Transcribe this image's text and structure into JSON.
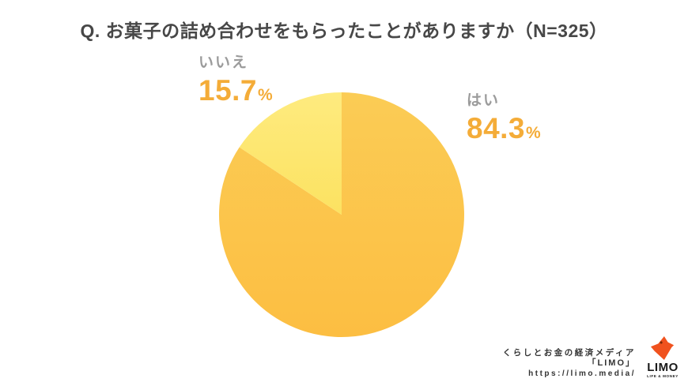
{
  "title": "Q. お菓子の詰め合わせをもらったことがありますか（N=325）",
  "chart_data": {
    "type": "pie",
    "title": "Q. お菓子の詰め合わせをもらったことがありますか",
    "sample_size": "N=325",
    "start_angle_deg": 0,
    "direction": "clockwise",
    "legend_position": "callout-labels",
    "slices": [
      {
        "label": "はい",
        "value": 84.3,
        "unit": "%",
        "color": "#FCC54A",
        "color_top": "#FBCC55",
        "color_bottom": "#FCBE42"
      },
      {
        "label": "いいえ",
        "value": 15.7,
        "unit": "%",
        "color": "#FDE76F",
        "color_top": "#FEEB7F",
        "color_bottom": "#FCE261"
      }
    ]
  },
  "callouts": {
    "yes": {
      "label": "はい",
      "value": "84.3",
      "unit": "%"
    },
    "no": {
      "label": "いいえ",
      "value": "15.7",
      "unit": "%"
    }
  },
  "colors": {
    "title_text": "#474747",
    "category_text": "#9B9B9B",
    "percent_text": "#F4AC38",
    "credit_text": "#333333",
    "logo_orange": "#F0521E",
    "background": "#FFFFFF"
  },
  "credit": {
    "line1": "くらしとお金の経済メディア",
    "line2": "「LIMO」",
    "line3": "https://limo.media/",
    "logo_word": "LIMO",
    "logo_sub": "LIFE & MONEY"
  }
}
